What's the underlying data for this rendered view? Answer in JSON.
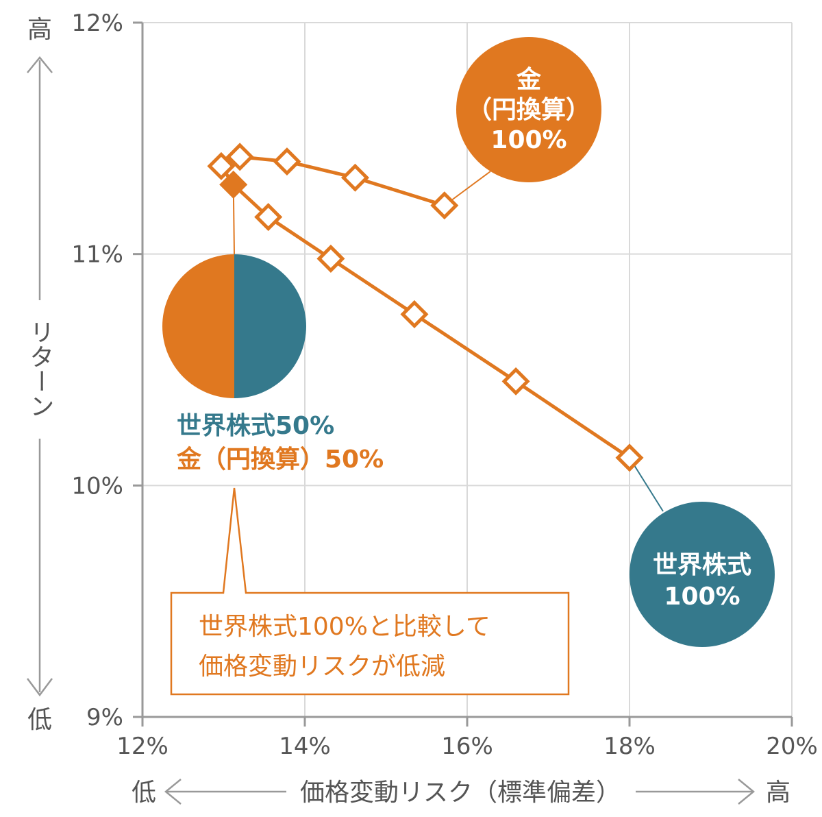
{
  "colors": {
    "accent_orange": "#e07820",
    "accent_teal": "#35798c",
    "grid": "#d9d9d9",
    "axis": "#999999",
    "text": "#555555"
  },
  "chart_data": {
    "type": "line",
    "title": "",
    "xlabel": "価格変動リスク（標準偏差）",
    "ylabel": "リターン",
    "x_low_label": "低",
    "x_high_label": "高",
    "y_low_label": "低",
    "y_high_label": "高",
    "xlim": [
      12,
      20
    ],
    "ylim": [
      9,
      12
    ],
    "x_ticks": [
      12,
      14,
      16,
      18,
      20
    ],
    "x_tick_labels": [
      "12%",
      "14%",
      "16%",
      "18%",
      "20%"
    ],
    "y_ticks": [
      9,
      10,
      11,
      12
    ],
    "y_tick_labels": [
      "9%",
      "10%",
      "11%",
      "12%"
    ],
    "grid": true,
    "series": [
      {
        "x": [
          18.0,
          16.6,
          15.35,
          14.32,
          13.55,
          13.12,
          12.97,
          13.2,
          13.78,
          14.62,
          15.72
        ],
        "y": [
          10.12,
          10.45,
          10.74,
          10.98,
          11.16,
          11.3,
          11.38,
          11.42,
          11.4,
          11.33,
          11.21
        ]
      }
    ],
    "highlight_point": {
      "x": 13.12,
      "y": 11.3
    },
    "bubbles": {
      "gold": {
        "lines": [
          "金",
          "（円換算）",
          "100%"
        ]
      },
      "stock": {
        "lines": [
          "世界株式",
          "100%"
        ]
      }
    },
    "pie": {
      "label_line1": "世界株式50%",
      "label_line2": "金（円換算）50%",
      "slices": [
        {
          "name": "世界株式",
          "value": 50
        },
        {
          "name": "金（円換算）",
          "value": 50
        }
      ]
    },
    "callout": {
      "line1": "世界株式100%と比較して",
      "line2": "価格変動リスクが低減"
    }
  }
}
